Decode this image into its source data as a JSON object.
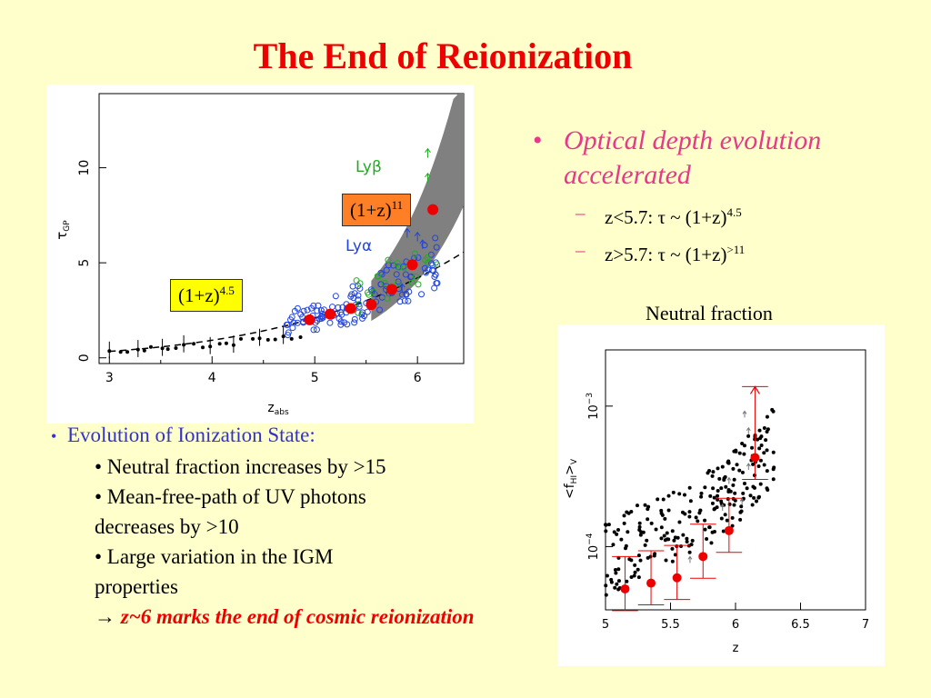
{
  "slide": {
    "title": "The End of Reionization",
    "neutral_label": "Neutral fraction",
    "bullets": {
      "main": "Optical depth evolution accelerated",
      "sub1_prefix": "z<5.7: τ ~ (1+z)",
      "sub1_exp": "4.5",
      "sub2_prefix": "z>5.7: τ ~ (1+z)",
      "sub2_exp": ">11"
    },
    "left_text": {
      "heading": "Evolution of Ionization State:",
      "items": [
        "• Neutral fraction increases by >15",
        "• Mean-free-path of UV photons",
        "decreases by >10",
        "• Large variation in the IGM",
        "properties"
      ],
      "arrow": "→",
      "conclusion": "z~6 marks the end of cosmic reionization"
    },
    "annotations": {
      "left_base": "(1+z)",
      "left_exp": "4.5",
      "right_base": "(1+z)",
      "right_exp": "11"
    },
    "colors": {
      "title": "#ee0000",
      "accent_pink": "#e8388a",
      "blue": "#3333cc",
      "red_points": "#ee0000"
    }
  },
  "chart_data": [
    {
      "type": "scatter",
      "xlabel": "z_abs",
      "ylabel": "τ_GP",
      "xlim": [
        2.9,
        6.45
      ],
      "ylim": [
        -0.3,
        13.9
      ],
      "xticks": [
        "3",
        "4",
        "5",
        "6"
      ],
      "yticks": [
        "0",
        "5",
        "10"
      ],
      "legend": [
        "Lyβ",
        "Lyα"
      ],
      "series": [
        {
          "name": "Lyα",
          "color": "#ee0000",
          "x": [
            4.95,
            5.15,
            5.35,
            5.55,
            5.75,
            5.95,
            6.15
          ],
          "y": [
            2.0,
            2.3,
            2.6,
            2.8,
            3.6,
            4.9,
            7.8
          ]
        }
      ]
    },
    {
      "type": "scatter",
      "xlabel": "z",
      "ylabel": "<f_HI>_V",
      "xlim": [
        5,
        7
      ],
      "log_y": true,
      "xticks": [
        "5",
        "5.5",
        "6",
        "6.5",
        "7"
      ],
      "yticks": [
        "10^-4",
        "10^-3"
      ],
      "series": [
        {
          "color": "#ee0000",
          "x": [
            5.15,
            5.35,
            5.55,
            5.75,
            5.95,
            6.15
          ],
          "y": [
            5e-05,
            5.5e-05,
            6e-05,
            8.5e-05,
            0.00013,
            0.00043
          ]
        }
      ]
    }
  ]
}
